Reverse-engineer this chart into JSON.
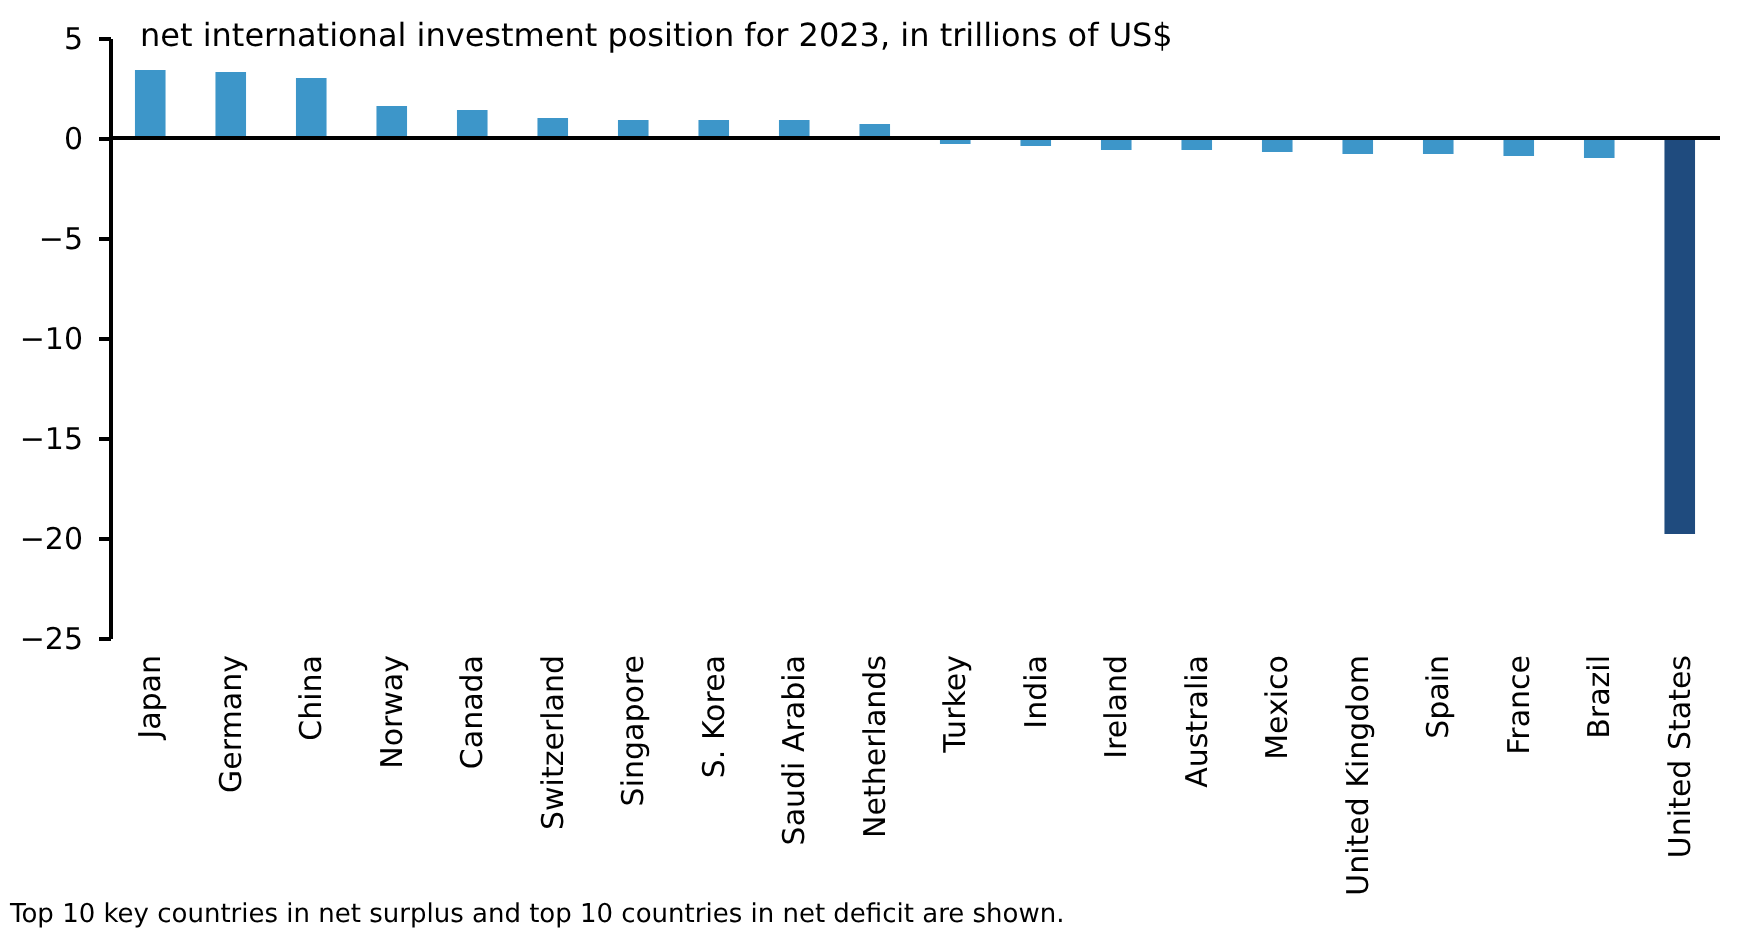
{
  "chart_data": {
    "type": "bar",
    "title": "net international investment position for 2023, in trillions of US$",
    "categories": [
      "Japan",
      "Germany",
      "China",
      "Norway",
      "Canada",
      "Switzerland",
      "Singapore",
      "S. Korea",
      "Saudi Arabia",
      "Netherlands",
      "Turkey",
      "India",
      "Ireland",
      "Australia",
      "Mexico",
      "United Kingdom",
      "Spain",
      "France",
      "Brazil",
      "United States"
    ],
    "values": [
      3.4,
      3.3,
      3.0,
      1.6,
      1.4,
      1.0,
      0.9,
      0.9,
      0.9,
      0.7,
      -0.3,
      -0.4,
      -0.6,
      -0.6,
      -0.7,
      -0.8,
      -0.8,
      -0.9,
      -1.0,
      -19.8
    ],
    "colors": [
      "#3d96c9",
      "#3d96c9",
      "#3d96c9",
      "#3d96c9",
      "#3d96c9",
      "#3d96c9",
      "#3d96c9",
      "#3d96c9",
      "#3d96c9",
      "#3d96c9",
      "#3d96c9",
      "#3d96c9",
      "#3d96c9",
      "#3d96c9",
      "#3d96c9",
      "#3d96c9",
      "#3d96c9",
      "#3d96c9",
      "#3d96c9",
      "#1f4b7e"
    ],
    "ylim": [
      -25,
      5
    ],
    "yticks": [
      -25,
      -20,
      -15,
      -10,
      -5,
      0,
      5
    ],
    "grid": false,
    "ref_lines": [
      {
        "axis": "y",
        "value": 0,
        "color": "#000000"
      }
    ],
    "annotations": [
      "Top 10 key countries in net surplus and top 10 countries in net deficit are shown."
    ]
  }
}
